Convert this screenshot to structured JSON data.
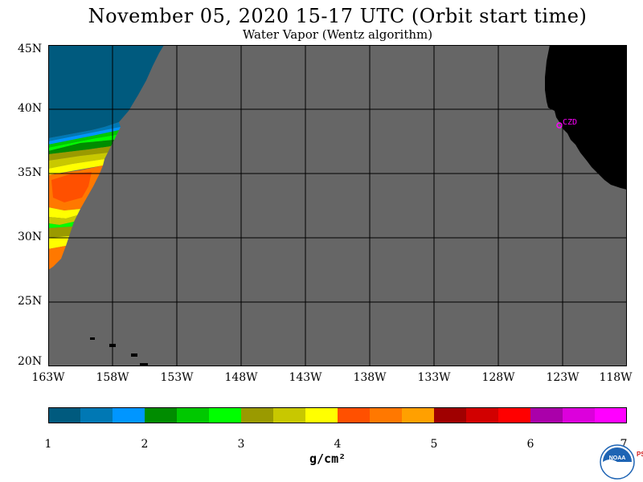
{
  "title": "November 05, 2020  15-17 UTC  (Orbit start time)",
  "subtitle": "Water Vapor (Wentz algorithm)",
  "map": {
    "longitude_labels": [
      "163W",
      "158W",
      "153W",
      "148W",
      "143W",
      "138W",
      "133W",
      "128W",
      "123W",
      "118W"
    ],
    "latitude_labels": [
      "45N",
      "40N",
      "35N",
      "30N",
      "25N",
      "20N"
    ],
    "station_label": "CZD",
    "colors": {
      "no_data": "#666666",
      "land": "#000000",
      "grid": "#000000",
      "station": "#ff00ff"
    }
  },
  "colorbar": {
    "tick_labels": [
      "1",
      "2",
      "3",
      "4",
      "5",
      "6",
      "7"
    ],
    "unit": "g/cm²",
    "colors": [
      "#005a7e",
      "#0078b4",
      "#0096ff",
      "#008c00",
      "#00c800",
      "#00ff00",
      "#9a9a00",
      "#c8c800",
      "#ffff00",
      "#ff5000",
      "#ff7800",
      "#ffa000",
      "#a00000",
      "#d20000",
      "#ff0000",
      "#aa00aa",
      "#dc00dc",
      "#ff00ff"
    ]
  },
  "logo": {
    "text": "NOAA",
    "side_text": "PSL"
  }
}
